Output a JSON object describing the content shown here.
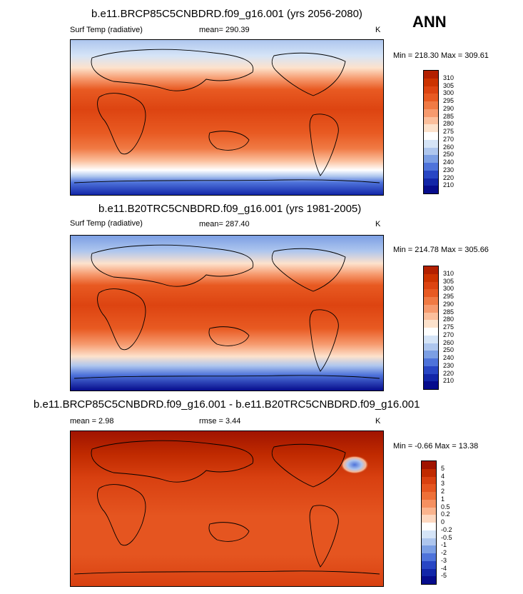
{
  "season": "ANN",
  "panels": [
    {
      "title": "b.e11.BRCP85C5CNBDRD.f09_g16.001 (yrs 2056-2080)",
      "variable": "Surf Temp (radiative)",
      "stat": "mean= 290.39",
      "units": "K",
      "minmax": "Min = 218.30 Max = 309.61"
    },
    {
      "title": "b.e11.B20TRC5CNBDRD.f09_g16.001 (yrs 1981-2005)",
      "variable": "Surf Temp (radiative)",
      "stat": "mean= 287.40",
      "units": "K",
      "minmax": "Min = 214.78 Max = 305.66"
    },
    {
      "title": "b.e11.BRCP85C5CNBDRD.f09_g16.001 - b.e11.B20TRC5CNBDRD.f09_g16.001",
      "variable": "mean =   2.98",
      "stat": "rmse =   3.44",
      "units": "K",
      "minmax": "Min =  -0.66 Max =  13.38"
    }
  ],
  "colorbars": {
    "temperature": {
      "labels": [
        "310",
        "305",
        "300",
        "295",
        "290",
        "285",
        "280",
        "275",
        "270",
        "260",
        "250",
        "240",
        "230",
        "220",
        "210"
      ],
      "colors": [
        "#b32000",
        "#cc3300",
        "#dd4411",
        "#e85a22",
        "#f07a44",
        "#f69a6e",
        "#fbbf9c",
        "#fde2cc",
        "#ffffff",
        "#d5e4f7",
        "#aec6ee",
        "#7c9fe4",
        "#4e73da",
        "#2846c4",
        "#1226a8",
        "#060c8c"
      ]
    },
    "difference": {
      "labels": [
        "5",
        "4",
        "3",
        "2",
        "1",
        "0.5",
        "0.2",
        "0",
        "-0.2",
        "-0.5",
        "-1",
        "-2",
        "-3",
        "-4",
        "-5"
      ],
      "colors": [
        "#a01400",
        "#c02a00",
        "#d84010",
        "#e55520",
        "#ee7038",
        "#f59060",
        "#fab48e",
        "#fdd8c0",
        "#ffffff",
        "#d5e4f7",
        "#aec6ee",
        "#7c9fe4",
        "#4e73da",
        "#2846c4",
        "#1226a8",
        "#060c8c"
      ]
    }
  },
  "chart_data": [
    {
      "type": "heatmap",
      "title": "b.e11.BRCP85C5CNBDRD.f09_g16.001 (yrs 2056-2080)",
      "subtitle": "Surf Temp (radiative)",
      "mean": 290.39,
      "units": "K",
      "min": 218.3,
      "max": 309.61,
      "contour_levels": [
        210,
        220,
        230,
        240,
        250,
        260,
        270,
        275,
        280,
        285,
        290,
        295,
        300,
        305,
        310
      ]
    },
    {
      "type": "heatmap",
      "title": "b.e11.B20TRC5CNBDRD.f09_g16.001 (yrs 1981-2005)",
      "subtitle": "Surf Temp (radiative)",
      "mean": 287.4,
      "units": "K",
      "min": 214.78,
      "max": 305.66,
      "contour_levels": [
        210,
        220,
        230,
        240,
        250,
        260,
        270,
        275,
        280,
        285,
        290,
        295,
        300,
        305,
        310
      ]
    },
    {
      "type": "heatmap",
      "title": "b.e11.BRCP85C5CNBDRD.f09_g16.001 - b.e11.B20TRC5CNBDRD.f09_g16.001",
      "mean": 2.98,
      "rmse": 3.44,
      "units": "K",
      "min": -0.66,
      "max": 13.38,
      "contour_levels": [
        -5,
        -4,
        -3,
        -2,
        -1,
        -0.5,
        -0.2,
        0,
        0.2,
        0.5,
        1,
        2,
        3,
        4,
        5
      ]
    }
  ]
}
